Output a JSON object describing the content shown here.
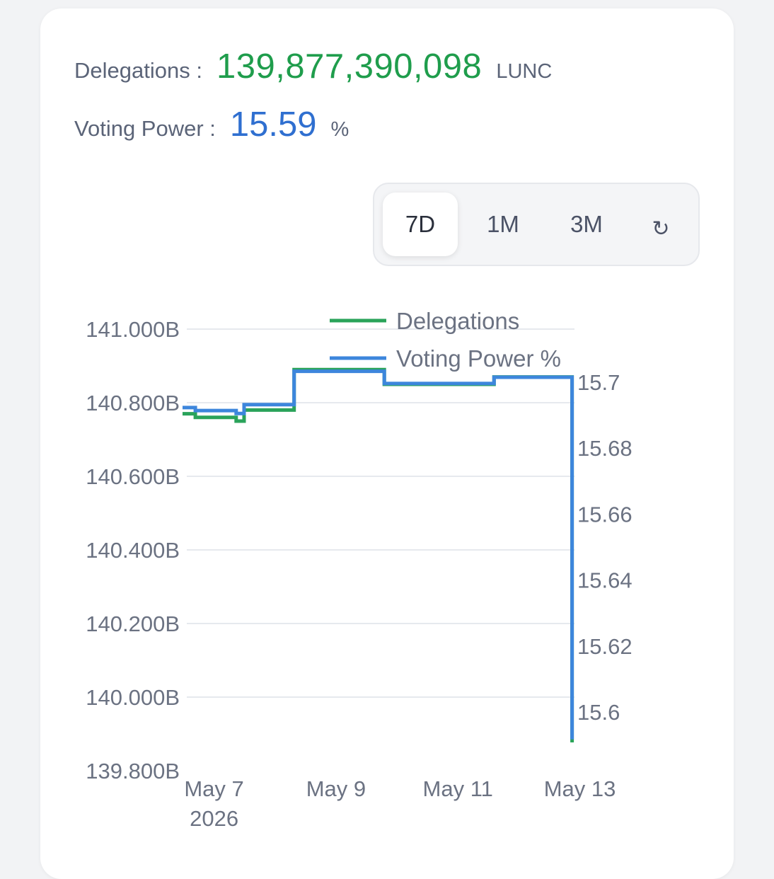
{
  "summary": {
    "delegations_label": "Delegations :",
    "delegations_value": "139,877,390,098",
    "delegations_unit": "LUNC",
    "voting_label": "Voting Power :",
    "voting_value": "15.59",
    "voting_unit": "%"
  },
  "range_selector": {
    "options": [
      "7D",
      "1M",
      "3M"
    ],
    "active": "7D",
    "refresh_icon": "refresh-icon",
    "refresh_glyph": "↻"
  },
  "colors": {
    "delegations": "#2aa35a",
    "voting_power": "#3d86dc",
    "grid": "#e6e9ee"
  },
  "chart_data": {
    "type": "line",
    "step": true,
    "legend": [
      "Delegations",
      "Voting Power %"
    ],
    "legend_position": "top",
    "grid": true,
    "x_ticks": [
      {
        "value": 7,
        "label": "May 7",
        "sublabel": "2026"
      },
      {
        "value": 9,
        "label": "May 9",
        "sublabel": ""
      },
      {
        "value": 11,
        "label": "May 11",
        "sublabel": ""
      },
      {
        "value": 13,
        "label": "May 13",
        "sublabel": ""
      }
    ],
    "x_range": [
      6.97,
      13.4
    ],
    "y_left": {
      "label": "",
      "range": [
        139.8,
        141.0
      ],
      "ticks": [
        {
          "value": 141.0,
          "label": "141.000B"
        },
        {
          "value": 140.8,
          "label": "140.800B"
        },
        {
          "value": 140.6,
          "label": "140.600B"
        },
        {
          "value": 140.4,
          "label": "140.400B"
        },
        {
          "value": 140.2,
          "label": "140.200B"
        },
        {
          "value": 140.0,
          "label": "140.000B"
        },
        {
          "value": 139.8,
          "label": "139.800B"
        }
      ]
    },
    "y_right": {
      "label": "",
      "range": [
        15.59,
        15.7
      ],
      "ticks": [
        {
          "value": 15.7,
          "label": "15.7"
        },
        {
          "value": 15.68,
          "label": "15.68"
        },
        {
          "value": 15.66,
          "label": "15.66"
        },
        {
          "value": 15.64,
          "label": "15.64"
        },
        {
          "value": 15.62,
          "label": "15.62"
        },
        {
          "value": 15.6,
          "label": "15.6"
        }
      ]
    },
    "series": [
      {
        "name": "Delegations",
        "axis": "left",
        "x": [
          6.97,
          7.18,
          7.8,
          7.85,
          7.98,
          8.63,
          8.8,
          10.28,
          10.93,
          11.5,
          12.0,
          12.08,
          13.36
        ],
        "y": [
          140.77,
          140.76,
          140.76,
          140.75,
          140.78,
          140.78,
          140.89,
          140.85,
          140.85,
          140.85,
          140.85,
          140.87,
          139.877
        ]
      },
      {
        "name": "Voting Power %",
        "axis": "right",
        "x": [
          6.97,
          7.18,
          7.8,
          7.85,
          7.98,
          8.63,
          8.8,
          10.28,
          10.93,
          11.5,
          12.0,
          12.08,
          13.36
        ],
        "y": [
          15.6923,
          15.6914,
          15.6914,
          15.6905,
          15.6932,
          15.6932,
          15.7033,
          15.6996,
          15.6996,
          15.6996,
          15.6996,
          15.7015,
          15.5917
        ]
      }
    ]
  }
}
